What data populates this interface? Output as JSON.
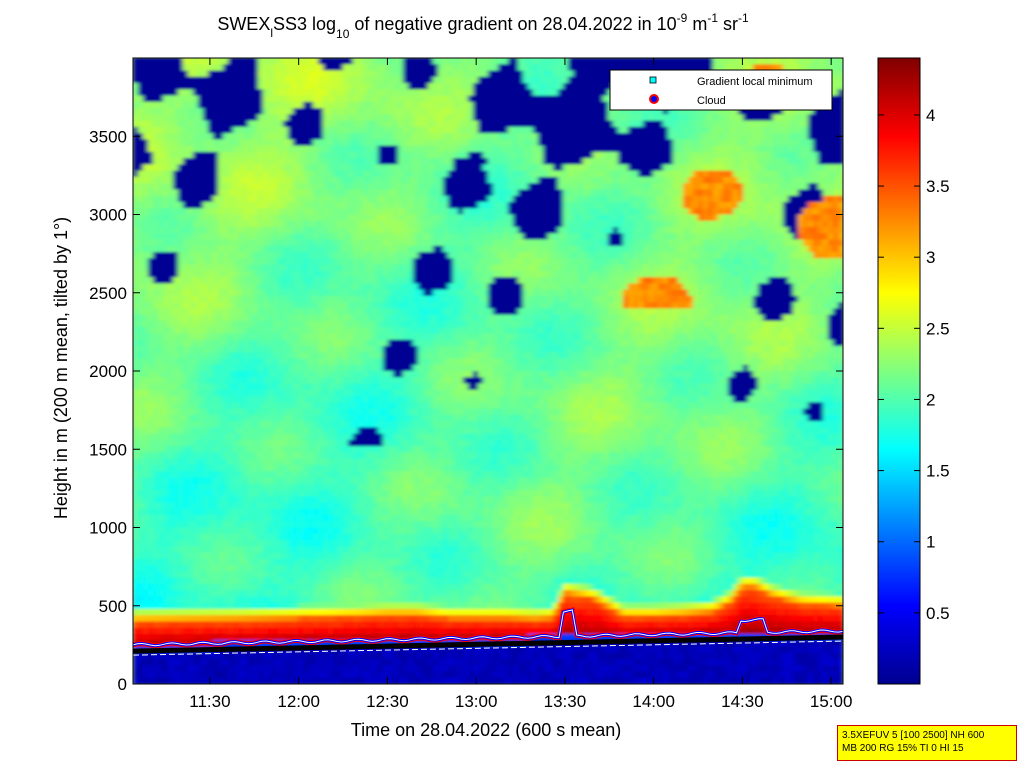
{
  "chart_data": {
    "type": "heatmap",
    "title": {
      "parts": [
        "SWEX",
        "l",
        "SS3 log",
        "10",
        " of negative gradient on 28.04.2022 in 10",
        "-9",
        " m",
        "-1",
        " sr",
        "-1"
      ]
    },
    "xlabel": "Time on 28.04.2022 (600 s mean)",
    "ylabel": "Height in m (200 m mean, tilted by 1°)",
    "x_ticks": [
      "11:30",
      "12:00",
      "12:30",
      "13:00",
      "13:30",
      "14:00",
      "14:30",
      "15:00"
    ],
    "x_tick_minutes": [
      690,
      720,
      750,
      780,
      810,
      840,
      870,
      900
    ],
    "xlim_minutes": [
      664,
      904
    ],
    "y_ticks": [
      "0",
      "500",
      "1000",
      "1500",
      "2000",
      "2500",
      "3000",
      "3500"
    ],
    "y_tick_values": [
      0,
      500,
      1000,
      1500,
      2000,
      2500,
      3000,
      3500
    ],
    "ylim": [
      0,
      4000
    ],
    "colorbar": {
      "ticks": [
        "0.5",
        "1",
        "1.5",
        "2",
        "2.5",
        "3",
        "3.5",
        "4"
      ],
      "tick_values": [
        0.5,
        1,
        1.5,
        2,
        2.5,
        3,
        3.5,
        4
      ],
      "range": [
        0,
        4.4
      ],
      "colormap": "jet"
    },
    "legend": {
      "placement": "top-right",
      "entries": [
        {
          "label": "Gradient local minimum",
          "marker": "square",
          "color": "#00ffff"
        },
        {
          "label": "Cloud",
          "marker": "circle",
          "color": "#0000ff",
          "edge": "#ff0000"
        }
      ]
    },
    "annotation": {
      "lines": [
        "3.5XEFUV 5 [100 2500] NH 600",
        "MB 200 RG 15% TI 0 HI 15"
      ]
    },
    "boundary_layer_top": {
      "x_minutes": [
        664,
        700,
        720,
        740,
        750,
        760,
        770,
        790,
        800,
        806,
        810,
        820,
        830,
        840,
        850,
        860,
        866,
        870,
        874,
        880,
        890,
        900,
        904
      ],
      "y_m": [
        400,
        410,
        420,
        430,
        440,
        440,
        420,
        420,
        410,
        420,
        580,
        540,
        430,
        430,
        440,
        460,
        520,
        620,
        620,
        560,
        510,
        500,
        500
      ]
    },
    "gradient_minimum_line": {
      "x_minutes": [
        664,
        904
      ],
      "y_m": [
        210,
        300
      ]
    }
  }
}
